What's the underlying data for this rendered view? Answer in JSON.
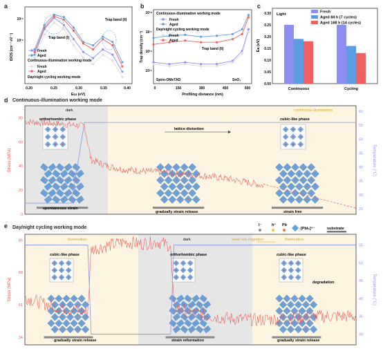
{
  "panel_a": {
    "letter": "a",
    "ylabel": "tDOS (cm⁻³ eV⁻¹)",
    "xlabel": "Eω (eV)",
    "yticks": [
      "10¹⁶",
      "10¹⁵"
    ],
    "xticks": [
      "0.20",
      "0.25",
      "0.30",
      "0.35",
      "0.40"
    ],
    "trap1": "Trap band (I)",
    "trap2": "Trap band (II)",
    "legend_top": [
      "Fresh",
      "Aged"
    ],
    "mode1": "Continuous-illumination working mode",
    "legend_bottom": [
      "Fresh",
      "Aged"
    ],
    "mode2": "Day/night cycling working mode"
  },
  "panel_b": {
    "letter": "b",
    "ylabel": "Trap density (cm⁻³)",
    "xlabel": "Profiling distance (nm)",
    "yticks": [
      "10¹⁸",
      "10¹⁷",
      "10¹⁶",
      "10¹⁵"
    ],
    "xticks": [
      "0",
      "150",
      "300",
      "450",
      "600"
    ],
    "mode1": "Continuous-illumination working mode",
    "legend_top": [
      "Fresh",
      "Aged"
    ],
    "mode2": "Day/night cycling working mode",
    "legend_bottom": [
      "Fresh",
      "Aged"
    ],
    "trap2": "Trap band (II)",
    "left_layer": "Spiro-OMeTAD",
    "right_layer": "SnO₂"
  },
  "panel_c": {
    "letter": "c",
    "ylabel": "Ea (eV)",
    "light": "Light",
    "yticks": [
      "0.00",
      "0.05",
      "0.10",
      "0.15",
      "0.20",
      "0.25",
      "0.30"
    ]
  },
  "panel_d": {
    "letter": "d",
    "title": "Continuous-illumination working mode",
    "ylabel_left": "Stress (MPa)",
    "ylabel_right": "Temperature (°C)",
    "yticks_left": [
      "0",
      "20",
      "40",
      "60",
      "80"
    ],
    "yticks_right": [
      "25",
      "30",
      "35",
      "40",
      "45",
      "50",
      "55",
      "60"
    ],
    "dark": "dark",
    "illumination": "continuous-illumination",
    "phase1": "orthorhombic phase",
    "phase2": "cubic-like phase",
    "distortion": "lattice distortion",
    "stage1": "spontaneous strain",
    "stage2": "gradually strain release",
    "stage3": "strain free"
  },
  "panel_e": {
    "letter": "e",
    "title": "Day/night cycling working mode",
    "ylabel_left": "Stress (MPa)",
    "ylabel_right": "Temperature (°C)",
    "yticks_left": [
      "34",
      "51",
      "68",
      "85"
    ],
    "yticks_right": [
      "30",
      "35",
      "40",
      "45",
      "50",
      "55"
    ],
    "illum_left": "illumination",
    "dark": "dark",
    "migration": "sever ion migration",
    "illum_right": "illumination",
    "phase_left": "cubic-like phase",
    "phase_mid": "orthorhombic phase",
    "phase_right": "cubic-like phase",
    "degradation": "degradation",
    "stage1": "gradually strain release",
    "stage2": "strain reformation",
    "stage3": "gradually strain release",
    "legend_iodide": "I⁻",
    "legend_hplus": "h⁺",
    "legend_pb": "Pb",
    "legend_octa": "[PbI₆]⁴⁻",
    "legend_substrate": "substrate"
  },
  "colors": {
    "fresh": "#8c8ff0",
    "aged84": "#5b9de0",
    "aged168": "#f06060",
    "stress": "#e8554f",
    "temperature": "#8e9ae8",
    "dark_bg": "#e6e6e6",
    "illum_bg": "#fdf5e2"
  },
  "chart_data": [
    {
      "type": "line",
      "panel": "a",
      "xlabel": "Eω (eV)",
      "ylabel": "tDOS (cm⁻³ eV⁻¹)",
      "xlim": [
        0.2,
        0.42
      ],
      "y_scale": "log",
      "series": [
        {
          "name": "Fresh",
          "group": "Continuous-illumination working mode",
          "x": [
            0.22,
            0.24,
            0.26,
            0.28,
            0.3,
            0.32,
            0.34,
            0.36,
            0.38,
            0.4
          ],
          "y": [
            3000000000000000.0,
            1.2e+16,
            2.2e+16,
            1.5e+16,
            7000000000000000.0,
            3500000000000000.0,
            2500000000000000.0,
            4000000000000000.0,
            3000000000000000.0,
            1200000000000000.0
          ]
        },
        {
          "name": "Aged",
          "group": "Continuous-illumination working mode",
          "x": [
            0.22,
            0.24,
            0.26,
            0.28,
            0.3,
            0.32,
            0.34,
            0.36,
            0.38,
            0.4
          ],
          "y": [
            4000000000000000.0,
            1.5e+16,
            2.6e+16,
            2.3e+16,
            1.3e+16,
            6000000000000000.0,
            5000000000000000.0,
            8000000000000000.0,
            6000000000000000.0,
            2000000000000000.0
          ]
        },
        {
          "name": "Fresh",
          "group": "Day/night cycling working mode",
          "x": [
            0.22,
            0.24,
            0.26,
            0.28,
            0.3,
            0.32,
            0.34,
            0.36,
            0.38,
            0.4
          ],
          "y": [
            2500000000000000.0,
            9000000000000000.0,
            1.7e+16,
            1.2e+16,
            5000000000000000.0,
            2500000000000000.0,
            1800000000000000.0,
            3000000000000000.0,
            2200000000000000.0,
            900000000000000.0
          ]
        },
        {
          "name": "Aged",
          "group": "Day/night cycling working mode",
          "x": [
            0.22,
            0.24,
            0.26,
            0.28,
            0.3,
            0.32,
            0.34,
            0.36,
            0.38,
            0.4
          ],
          "y": [
            3500000000000000.0,
            1.3e+16,
            2.4e+16,
            2e+16,
            1.1e+16,
            5500000000000000.0,
            4000000000000000.0,
            7000000000000000.0,
            5000000000000000.0,
            1600000000000000.0
          ]
        }
      ]
    },
    {
      "type": "line",
      "panel": "b",
      "xlabel": "Profiling distance (nm)",
      "ylabel": "Trap density (cm⁻³)",
      "xlim": [
        0,
        620
      ],
      "y_scale": "log",
      "series": [
        {
          "name": "Fresh",
          "group": "Continuous-illumination working mode",
          "x": [
            0,
            100,
            200,
            300,
            400,
            500,
            560,
            600
          ],
          "y": [
            6000000000000000.0,
            5000000000000000.0,
            6000000000000000.0,
            5000000000000000.0,
            5000000000000000.0,
            7000000000000000.0,
            2e+16,
            2e+17
          ]
        },
        {
          "name": "Aged",
          "group": "Continuous-illumination working mode",
          "x": [
            0,
            100,
            200,
            300,
            400,
            500,
            560,
            600
          ],
          "y": [
            8e+16,
            1e+17,
            1.1e+17,
            9e+16,
            1e+17,
            1.2e+17,
            2e+17,
            9e+17
          ]
        },
        {
          "name": "Fresh",
          "group": "Day/night cycling working mode",
          "x": [
            0,
            100,
            200,
            300,
            400,
            500,
            560,
            600
          ],
          "y": [
            5000000000000000.0,
            4000000000000000.0,
            5000000000000000.0,
            4000000000000000.0,
            4000000000000000.0,
            6000000000000000.0,
            1.5e+16,
            1.5e+17
          ]
        },
        {
          "name": "Aged",
          "group": "Day/night cycling working mode",
          "x": [
            0,
            100,
            200,
            300,
            400,
            500,
            560,
            600
          ],
          "y": [
            4e+16,
            5e+16,
            6e+16,
            5e+16,
            5e+16,
            7e+16,
            1.2e+17,
            7e+17
          ]
        }
      ]
    },
    {
      "type": "bar",
      "panel": "c",
      "ylabel": "Ea (eV)",
      "categories": [
        "Continuous",
        "Cycling"
      ],
      "ylim": [
        0,
        0.32
      ],
      "series": [
        {
          "name": "Fresh",
          "values": [
            0.25,
            0.25
          ]
        },
        {
          "name": "Aged 84 h (7 cycles)",
          "values": [
            0.19,
            0.16
          ]
        },
        {
          "name": "Aged 168 h (14 cycles)",
          "values": [
            0.18,
            0.13
          ]
        }
      ]
    },
    {
      "type": "line",
      "panel": "d",
      "ylabel": "Stress (MPa)",
      "ylabel_right": "Temperature (°C)",
      "ylim": [
        0,
        90
      ],
      "ylim_right": [
        23,
        62
      ],
      "series": [
        {
          "name": "Stress (MPa)",
          "x": [
            0,
            5,
            10,
            15,
            18,
            20,
            25,
            30,
            40,
            50,
            60,
            70,
            100
          ],
          "y": [
            77,
            76,
            75,
            74,
            73,
            45,
            40,
            37,
            35,
            33,
            30,
            25,
            5
          ]
        },
        {
          "name": "Temperature (°C)",
          "x": [
            0,
            14,
            18,
            100
          ],
          "y": [
            27,
            27,
            56,
            56
          ]
        }
      ]
    },
    {
      "type": "line",
      "panel": "e",
      "ylabel": "Stress (MPa)",
      "ylabel_right": "Temperature (°C)",
      "ylim": [
        30,
        88
      ],
      "ylim_right": [
        27,
        58
      ],
      "series": [
        {
          "name": "Stress (MPa)",
          "x": [
            0,
            5,
            10,
            15,
            19,
            20,
            25,
            30,
            35,
            40,
            44,
            45,
            50,
            60,
            70,
            80,
            90,
            100
          ],
          "y": [
            55,
            52,
            50,
            48,
            47,
            80,
            82,
            84,
            83,
            84,
            82,
            50,
            47,
            44,
            43,
            44,
            45,
            45
          ]
        },
        {
          "name": "Temperature (°C)",
          "x": [
            0,
            19,
            20,
            44,
            45,
            100
          ],
          "y": [
            55,
            55,
            30,
            30,
            55,
            55
          ]
        }
      ]
    }
  ]
}
